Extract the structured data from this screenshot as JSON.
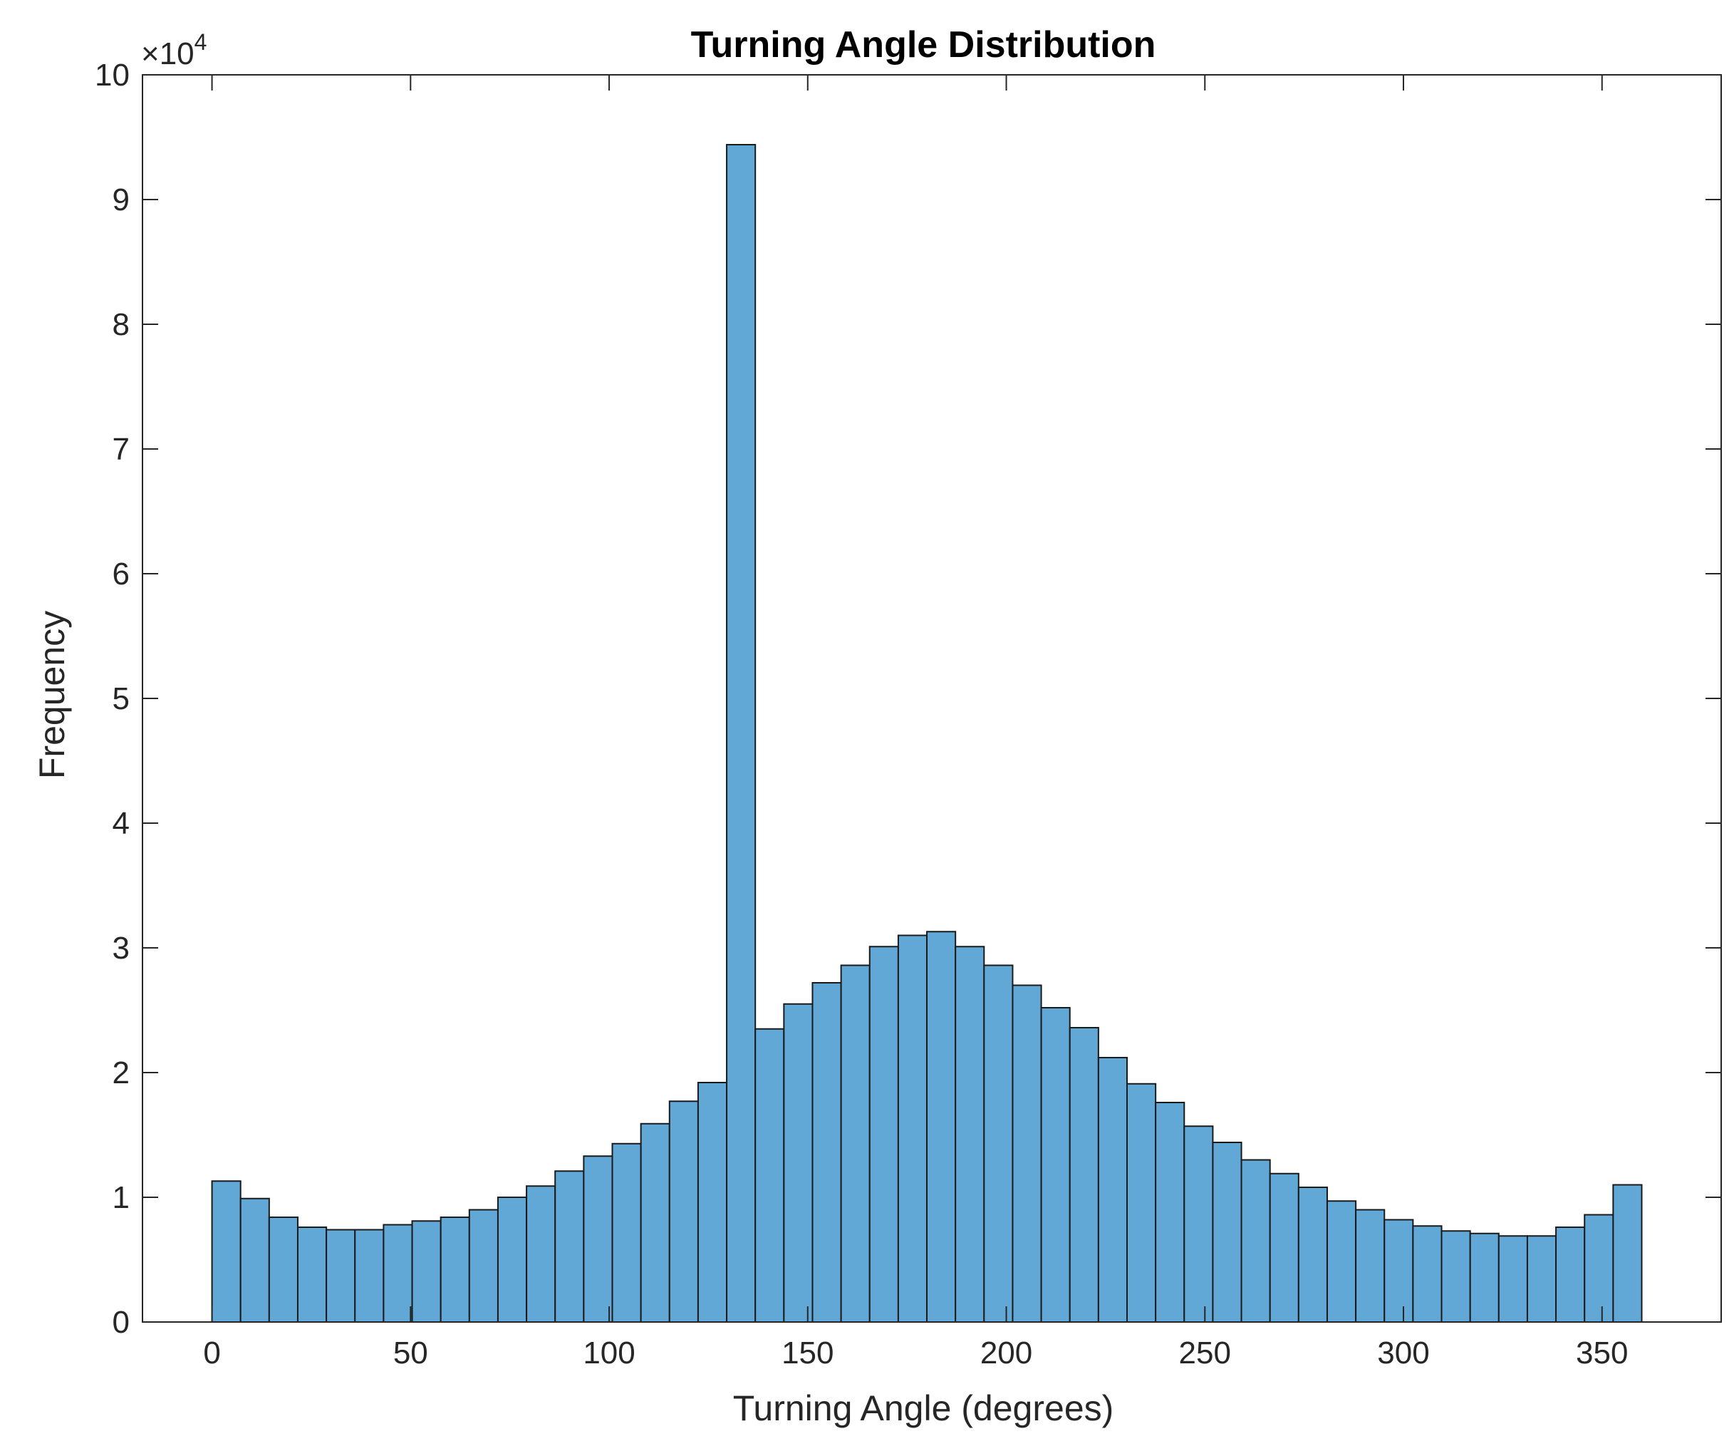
{
  "chart_data": {
    "type": "bar",
    "title": "Turning Angle Distribution",
    "xlabel": "Turning Angle (degrees)",
    "ylabel": "Frequency",
    "xlim": [
      -17.5,
      380
    ],
    "ylim": [
      0,
      10
    ],
    "y_exponent_base": "×10",
    "y_exponent_power": "4",
    "x_ticks": [
      0,
      50,
      100,
      150,
      200,
      250,
      300,
      350
    ],
    "x_tick_labels": [
      "0",
      "50",
      "100",
      "150",
      "200",
      "250",
      "300",
      "350"
    ],
    "y_ticks": [
      0,
      1,
      2,
      3,
      4,
      5,
      6,
      7,
      8,
      9,
      10
    ],
    "y_tick_labels": [
      "0",
      "1",
      "2",
      "3",
      "4",
      "5",
      "6",
      "7",
      "8",
      "9",
      "10"
    ],
    "grid": false,
    "colors": {
      "bar_fill": "#61a8d6",
      "bar_edge": "#1a1a1a",
      "axis": "#262626"
    },
    "bin_width": 7.2,
    "bin_edges_start": 0,
    "values": [
      1.13,
      0.99,
      0.84,
      0.76,
      0.74,
      0.74,
      0.78,
      0.81,
      0.84,
      0.9,
      1.0,
      1.09,
      1.21,
      1.33,
      1.43,
      1.59,
      1.77,
      1.92,
      9.44,
      2.35,
      2.55,
      2.72,
      2.86,
      3.01,
      3.1,
      3.13,
      3.01,
      2.86,
      2.7,
      2.52,
      2.36,
      2.12,
      1.91,
      1.76,
      1.57,
      1.44,
      1.3,
      1.19,
      1.08,
      0.97,
      0.9,
      0.82,
      0.77,
      0.73,
      0.71,
      0.69,
      0.69,
      0.76,
      0.86,
      1.1
    ]
  }
}
